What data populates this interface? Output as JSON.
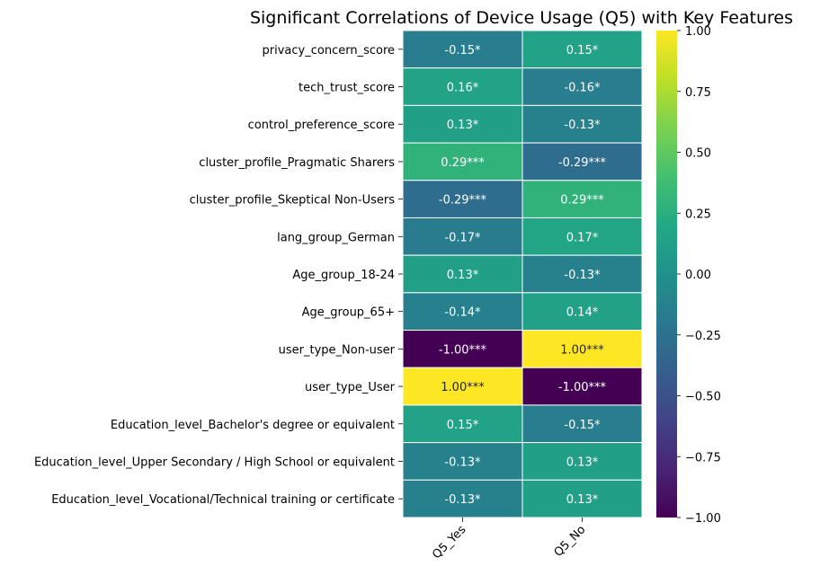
{
  "chart_data": {
    "type": "heatmap",
    "title": "Significant Correlations of Device Usage (Q5) with Key Features",
    "columns": [
      "Q5_Yes",
      "Q5_No"
    ],
    "rows": [
      "privacy_concern_score",
      "tech_trust_score",
      "control_preference_score",
      "cluster_profile_Pragmatic Sharers",
      "cluster_profile_Skeptical Non-Users",
      "lang_group_German",
      "Age_group_18-24",
      "Age_group_65+",
      "user_type_Non-user",
      "user_type_User",
      "Education_level_Bachelor's degree or equivalent",
      "Education_level_Upper Secondary / High School or equivalent",
      "Education_level_Vocational/Technical training or certificate"
    ],
    "values": [
      [
        -0.15,
        0.15
      ],
      [
        0.16,
        -0.16
      ],
      [
        0.13,
        -0.13
      ],
      [
        0.29,
        -0.29
      ],
      [
        -0.29,
        0.29
      ],
      [
        -0.17,
        0.17
      ],
      [
        0.13,
        -0.13
      ],
      [
        -0.14,
        0.14
      ],
      [
        -1.0,
        1.0
      ],
      [
        1.0,
        -1.0
      ],
      [
        0.15,
        -0.15
      ],
      [
        -0.13,
        0.13
      ],
      [
        -0.13,
        0.13
      ]
    ],
    "annotations": [
      [
        "-0.15*",
        "0.15*"
      ],
      [
        "0.16*",
        "-0.16*"
      ],
      [
        "0.13*",
        "-0.13*"
      ],
      [
        "0.29***",
        "-0.29***"
      ],
      [
        "-0.29***",
        "0.29***"
      ],
      [
        "-0.17*",
        "0.17*"
      ],
      [
        "0.13*",
        "-0.13*"
      ],
      [
        "-0.14*",
        "0.14*"
      ],
      [
        "-1.00***",
        "1.00***"
      ],
      [
        "1.00***",
        "-1.00***"
      ],
      [
        "0.15*",
        "-0.15*"
      ],
      [
        "-0.13*",
        "0.13*"
      ],
      [
        "-0.13*",
        "0.13*"
      ]
    ],
    "colormap": "viridis",
    "vmin": -1.0,
    "vmax": 1.0,
    "colorbar_ticks": [
      {
        "value": 1.0,
        "label": "1.00"
      },
      {
        "value": 0.75,
        "label": "0.75"
      },
      {
        "value": 0.5,
        "label": "0.50"
      },
      {
        "value": 0.25,
        "label": "0.25"
      },
      {
        "value": 0.0,
        "label": "0.00"
      },
      {
        "value": -0.25,
        "label": "−0.25"
      },
      {
        "value": -0.5,
        "label": "−0.50"
      },
      {
        "value": -0.75,
        "label": "−0.75"
      },
      {
        "value": -1.0,
        "label": "−1.00"
      }
    ],
    "grid": true,
    "cell_border_color": "#ffffff"
  }
}
